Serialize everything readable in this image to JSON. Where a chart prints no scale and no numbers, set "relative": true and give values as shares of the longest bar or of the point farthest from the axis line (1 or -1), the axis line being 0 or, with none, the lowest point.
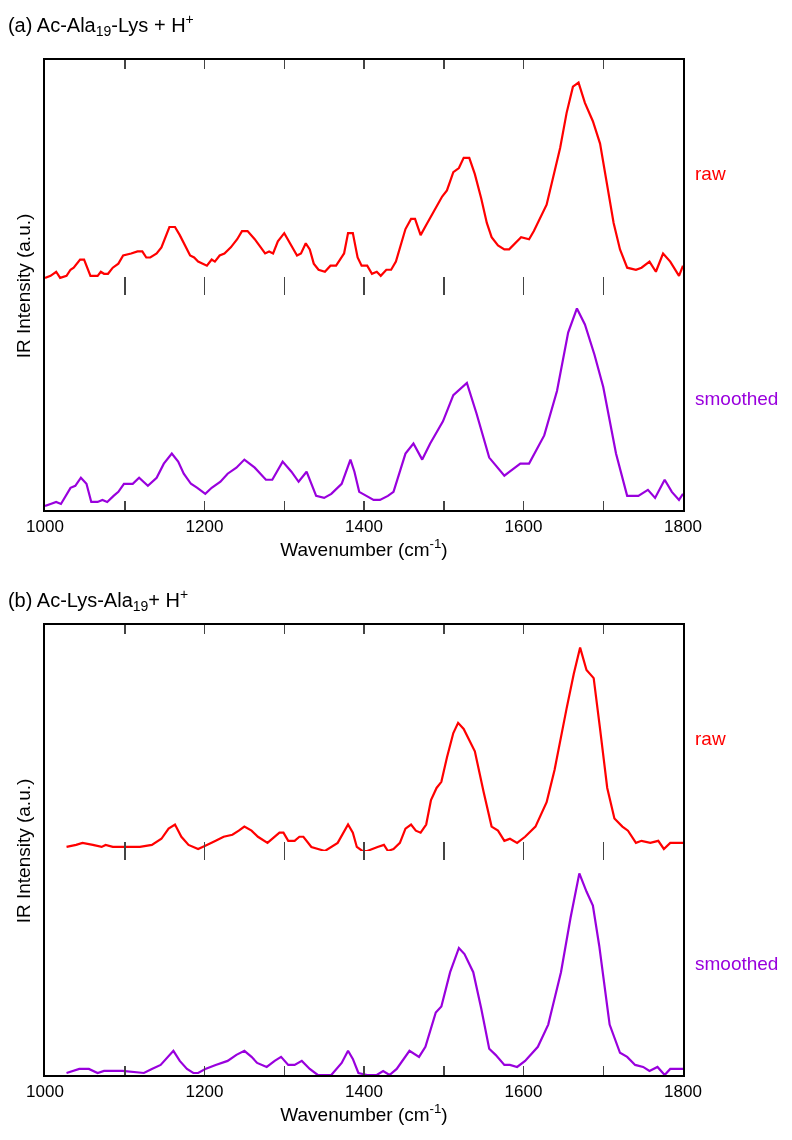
{
  "chart_data": [
    {
      "type": "line",
      "title": "(a) Ac-Ala$_{19}$-Lys + H$^{+}$",
      "ylabel": "IR Intensity (a.u.)",
      "relative": true,
      "tick_labels": false,
      "xlim": [
        1000,
        1800
      ],
      "xticks": [
        1000,
        {
          "value": 1100,
          "label": null
        },
        1200,
        {
          "value": 1300,
          "label": null
        },
        1400,
        {
          "value": 1500,
          "label": null
        },
        1600,
        {
          "value": 1700,
          "label": null
        },
        1800
      ],
      "x": [
        1000,
        1007,
        1014,
        1019,
        1027,
        1032,
        1036,
        1044,
        1049,
        1057,
        1066,
        1070,
        1074,
        1079,
        1085,
        1092,
        1098,
        1108,
        1116,
        1122,
        1127,
        1132,
        1140,
        1146,
        1156,
        1163,
        1169,
        1182,
        1187,
        1192,
        1203,
        1209,
        1213,
        1219,
        1225,
        1233,
        1241,
        1247,
        1254,
        1263,
        1276,
        1281,
        1286,
        1292,
        1300,
        1316,
        1321,
        1327,
        1332,
        1337,
        1343,
        1351,
        1358,
        1365,
        1375,
        1380,
        1386,
        1392,
        1397,
        1404,
        1410,
        1416,
        1421,
        1428,
        1434,
        1440,
        1452,
        1459,
        1464,
        1471,
        1478,
        1488,
        1498,
        1504,
        1512,
        1519,
        1525,
        1532,
        1539,
        1547,
        1554,
        1560,
        1568,
        1576,
        1582,
        1597,
        1607,
        1613,
        1629,
        1646,
        1654,
        1662,
        1669,
        1677,
        1687,
        1696,
        1713,
        1721,
        1730,
        1741,
        1748,
        1758,
        1766,
        1775,
        1784,
        1795,
        1800
      ],
      "series": [
        {
          "name": "raw",
          "color": "#ff0000",
          "values": [
            0.04,
            0.05,
            0.07,
            0.04,
            0.05,
            0.08,
            0.09,
            0.13,
            0.13,
            0.05,
            0.05,
            0.07,
            0.06,
            0.06,
            0.09,
            0.11,
            0.15,
            0.16,
            0.17,
            0.17,
            0.14,
            0.14,
            0.16,
            0.19,
            0.29,
            0.29,
            0.25,
            0.15,
            0.14,
            0.12,
            0.1,
            0.13,
            0.12,
            0.15,
            0.16,
            0.19,
            0.23,
            0.27,
            0.27,
            0.23,
            0.16,
            0.17,
            0.16,
            0.22,
            0.26,
            0.15,
            0.16,
            0.21,
            0.18,
            0.11,
            0.08,
            0.07,
            0.1,
            0.1,
            0.16,
            0.26,
            0.26,
            0.14,
            0.1,
            0.1,
            0.06,
            0.07,
            0.05,
            0.08,
            0.08,
            0.12,
            0.28,
            0.33,
            0.33,
            0.25,
            0.3,
            0.37,
            0.44,
            0.47,
            0.56,
            0.58,
            0.63,
            0.63,
            0.55,
            0.43,
            0.31,
            0.24,
            0.2,
            0.18,
            0.18,
            0.24,
            0.23,
            0.27,
            0.4,
            0.68,
            0.85,
            0.98,
            1.0,
            0.9,
            0.81,
            0.7,
            0.31,
            0.18,
            0.09,
            0.08,
            0.09,
            0.12,
            0.07,
            0.16,
            0.12,
            0.05,
            0.1
          ]
        }
      ]
    },
    {
      "type": "line",
      "xlabel": "Wavenumber (cm$^{-1}$)",
      "relative": true,
      "tick_labels": "x",
      "xlim": [
        1000,
        1800
      ],
      "xticks": [
        1000,
        {
          "value": 1100,
          "label": null
        },
        1200,
        {
          "value": 1300,
          "label": null
        },
        1400,
        {
          "value": 1500,
          "label": null
        },
        1600,
        {
          "value": 1700,
          "label": null
        },
        1800
      ],
      "x": [
        1000,
        1007,
        1014,
        1020,
        1032,
        1038,
        1045,
        1052,
        1058,
        1066,
        1072,
        1078,
        1086,
        1092,
        1099,
        1110,
        1118,
        1129,
        1140,
        1149,
        1159,
        1167,
        1174,
        1183,
        1191,
        1201,
        1209,
        1220,
        1229,
        1240,
        1250,
        1263,
        1277,
        1285,
        1298,
        1309,
        1318,
        1328,
        1340,
        1350,
        1359,
        1372,
        1383,
        1388,
        1394,
        1403,
        1412,
        1420,
        1430,
        1437,
        1452,
        1462,
        1473,
        1483,
        1499,
        1512,
        1529,
        1541,
        1557,
        1576,
        1596,
        1607,
        1626,
        1642,
        1656,
        1667,
        1677,
        1689,
        1700,
        1716,
        1730,
        1744,
        1756,
        1765,
        1777,
        1786,
        1795,
        1800
      ],
      "series": [
        {
          "name": "smoothed",
          "color": "#9900dd",
          "values": [
            0.02,
            0.03,
            0.04,
            0.03,
            0.11,
            0.12,
            0.16,
            0.13,
            0.04,
            0.04,
            0.05,
            0.04,
            0.07,
            0.09,
            0.13,
            0.13,
            0.16,
            0.12,
            0.16,
            0.23,
            0.28,
            0.24,
            0.18,
            0.13,
            0.11,
            0.08,
            0.11,
            0.14,
            0.18,
            0.21,
            0.25,
            0.21,
            0.15,
            0.15,
            0.24,
            0.19,
            0.14,
            0.19,
            0.07,
            0.06,
            0.08,
            0.13,
            0.25,
            0.19,
            0.09,
            0.07,
            0.05,
            0.05,
            0.07,
            0.09,
            0.28,
            0.33,
            0.25,
            0.33,
            0.44,
            0.57,
            0.63,
            0.48,
            0.26,
            0.17,
            0.23,
            0.23,
            0.37,
            0.59,
            0.88,
            1.0,
            0.92,
            0.77,
            0.61,
            0.28,
            0.07,
            0.07,
            0.1,
            0.06,
            0.15,
            0.09,
            0.05,
            0.08
          ]
        }
      ]
    },
    {
      "type": "line",
      "title": "(b) Ac-Lys-Ala$_{19}$+ H$^{+}$",
      "ylabel": "IR Intensity (a.u.)",
      "relative": true,
      "tick_labels": false,
      "xlim": [
        1000,
        1800
      ],
      "xticks": [
        1000,
        {
          "value": 1100,
          "label": null
        },
        1200,
        {
          "value": 1300,
          "label": null
        },
        1400,
        {
          "value": 1500,
          "label": null
        },
        1600,
        {
          "value": 1700,
          "label": null
        },
        1800
      ],
      "x": [
        1027,
        1039,
        1047,
        1060,
        1071,
        1076,
        1085,
        1103,
        1119,
        1134,
        1146,
        1155,
        1163,
        1171,
        1180,
        1192,
        1203,
        1214,
        1224,
        1235,
        1243,
        1250,
        1259,
        1267,
        1279,
        1294,
        1299,
        1305,
        1313,
        1319,
        1324,
        1334,
        1351,
        1367,
        1380,
        1386,
        1391,
        1398,
        1404,
        1417,
        1425,
        1430,
        1437,
        1445,
        1452,
        1459,
        1465,
        1471,
        1478,
        1484,
        1491,
        1497,
        1504,
        1512,
        1518,
        1525,
        1539,
        1550,
        1560,
        1568,
        1576,
        1583,
        1592,
        1602,
        1615,
        1629,
        1639,
        1654,
        1663,
        1671,
        1679,
        1688,
        1696,
        1705,
        1714,
        1724,
        1731,
        1741,
        1748,
        1759,
        1769,
        1776,
        1784,
        1800
      ],
      "series": [
        {
          "name": "raw",
          "color": "#ff0000",
          "values": [
            0.02,
            0.03,
            0.04,
            0.03,
            0.02,
            0.03,
            0.02,
            0.02,
            0.02,
            0.03,
            0.06,
            0.11,
            0.13,
            0.07,
            0.03,
            0.01,
            0.03,
            0.05,
            0.07,
            0.08,
            0.1,
            0.12,
            0.1,
            0.07,
            0.04,
            0.09,
            0.09,
            0.05,
            0.05,
            0.07,
            0.07,
            0.02,
            0.0,
            0.04,
            0.13,
            0.09,
            0.02,
            0.0,
            0.0,
            0.02,
            0.03,
            0.0,
            0.01,
            0.04,
            0.11,
            0.13,
            0.1,
            0.09,
            0.13,
            0.25,
            0.31,
            0.34,
            0.46,
            0.58,
            0.63,
            0.6,
            0.49,
            0.29,
            0.12,
            0.1,
            0.05,
            0.06,
            0.04,
            0.07,
            0.12,
            0.24,
            0.4,
            0.7,
            0.87,
            1.0,
            0.89,
            0.85,
            0.6,
            0.31,
            0.16,
            0.12,
            0.1,
            0.04,
            0.05,
            0.04,
            0.05,
            0.01,
            0.04,
            0.04
          ]
        }
      ]
    },
    {
      "type": "line",
      "xlabel": "Wavenumber (cm$^{-1}$)",
      "relative": true,
      "tick_labels": "x",
      "xlim": [
        1000,
        1800
      ],
      "xticks": [
        1000,
        {
          "value": 1100,
          "label": null
        },
        1200,
        {
          "value": 1300,
          "label": null
        },
        1400,
        {
          "value": 1500,
          "label": null
        },
        1600,
        {
          "value": 1700,
          "label": null
        },
        1800
      ],
      "x": [
        1027,
        1043,
        1055,
        1066,
        1074,
        1085,
        1097,
        1124,
        1134,
        1145,
        1161,
        1169,
        1178,
        1186,
        1192,
        1201,
        1214,
        1229,
        1240,
        1250,
        1259,
        1266,
        1278,
        1288,
        1296,
        1305,
        1313,
        1322,
        1332,
        1342,
        1359,
        1372,
        1380,
        1386,
        1393,
        1404,
        1416,
        1424,
        1432,
        1441,
        1457,
        1469,
        1477,
        1490,
        1497,
        1508,
        1519,
        1526,
        1537,
        1547,
        1557,
        1565,
        1576,
        1583,
        1592,
        1602,
        1618,
        1631,
        1647,
        1659,
        1670,
        1679,
        1687,
        1695,
        1708,
        1721,
        1730,
        1740,
        1750,
        1758,
        1768,
        1777,
        1784,
        1800
      ],
      "series": [
        {
          "name": "smoothed",
          "color": "#9900dd",
          "values": [
            0.01,
            0.03,
            0.03,
            0.01,
            0.02,
            0.02,
            0.02,
            0.01,
            0.03,
            0.05,
            0.12,
            0.07,
            0.03,
            0.01,
            0.01,
            0.03,
            0.05,
            0.07,
            0.1,
            0.12,
            0.09,
            0.06,
            0.04,
            0.07,
            0.09,
            0.05,
            0.05,
            0.07,
            0.03,
            0.0,
            0.0,
            0.06,
            0.12,
            0.08,
            0.01,
            0.0,
            0.0,
            0.02,
            0.0,
            0.03,
            0.12,
            0.09,
            0.14,
            0.31,
            0.34,
            0.51,
            0.63,
            0.6,
            0.51,
            0.33,
            0.13,
            0.1,
            0.05,
            0.05,
            0.04,
            0.07,
            0.14,
            0.25,
            0.51,
            0.78,
            1.0,
            0.91,
            0.84,
            0.64,
            0.25,
            0.11,
            0.09,
            0.05,
            0.04,
            0.02,
            0.04,
            0.0,
            0.03,
            0.03
          ]
        }
      ]
    }
  ]
}
